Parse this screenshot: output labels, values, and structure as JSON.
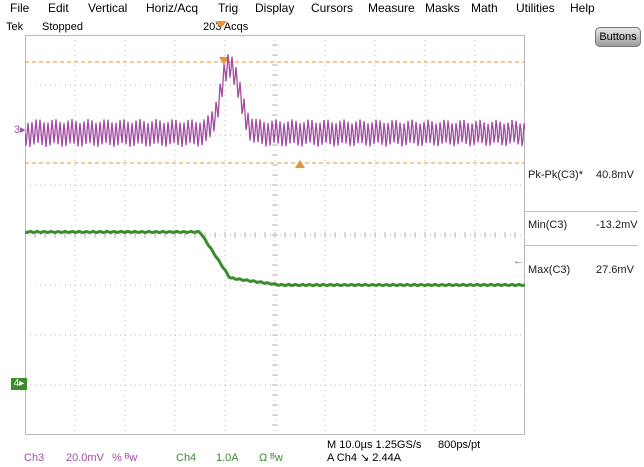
{
  "menu": [
    "File",
    "Edit",
    "Vertical",
    "Horiz/Acq",
    "Trig",
    "Display",
    "Cursors",
    "Measure",
    "Masks",
    "Math",
    "Utilities",
    "Help"
  ],
  "status": {
    "brand": "Tek",
    "state": "Stopped",
    "acquisitions": "203 Acqs"
  },
  "buttons_label": "Buttons",
  "markers": {
    "ch3": "3",
    "ch4": "4"
  },
  "measurements": [
    {
      "label": "Pk-Pk(C3)*",
      "value": "40.8mV"
    },
    {
      "label": "Min(C3)",
      "value": "-13.2mV"
    },
    {
      "label": "Max(C3)",
      "value": "27.6mV"
    }
  ],
  "bottom": {
    "ch3_label": "Ch3",
    "ch3_scale": "20.0mV",
    "ch3_coupling": "% ᴮw",
    "ch4_label": "Ch4",
    "ch4_scale": "1.0A",
    "ch4_coupling": "Ω ᴮw",
    "timebase": "M 10.0µs 1.25GS/s",
    "resolution": "800ps/pt",
    "trigger": "A Ch4 ↘ 2.44A"
  },
  "colors": {
    "ch3": "#a24ca3",
    "ch4": "#3a8c2c",
    "cursor": "#e8943a",
    "grid": "#b9b9b9"
  }
}
